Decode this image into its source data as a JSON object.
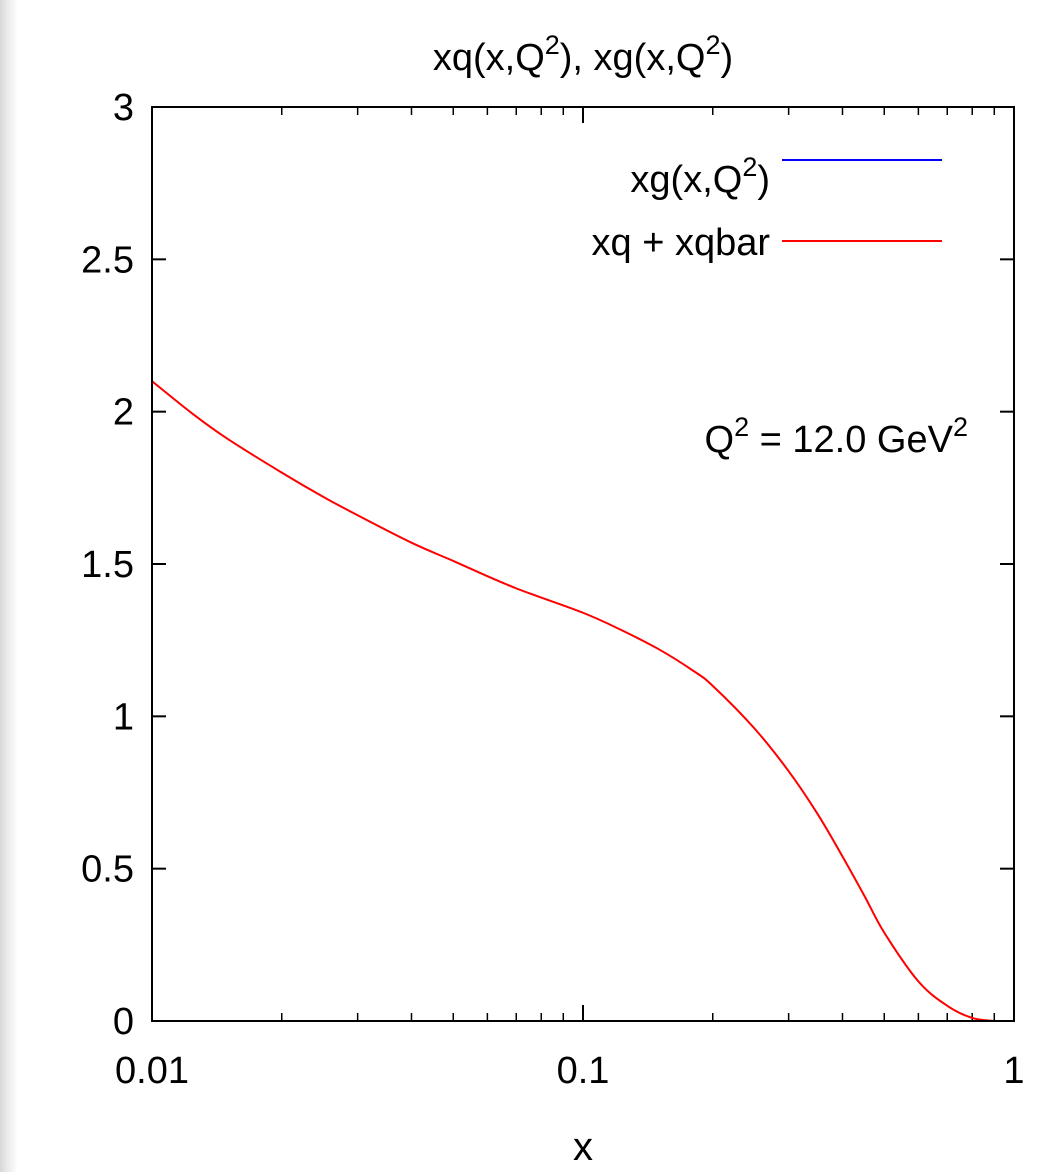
{
  "chart_data": {
    "type": "line",
    "title": "xq(x,Q2), xg(x,Q2)",
    "title_parts": {
      "a": "xq(x,Q",
      "b": "), xg(x,Q",
      "c": ")",
      "sup": "2"
    },
    "xlabel": "x",
    "ylabel": "",
    "x_scale": "log",
    "xlim": [
      0.01,
      1
    ],
    "ylim": [
      0,
      3
    ],
    "x_ticks": [
      0.01,
      0.1,
      1
    ],
    "x_tick_labels": [
      "0.01",
      "0.1",
      "1"
    ],
    "y_ticks": [
      0,
      0.5,
      1,
      1.5,
      2,
      2.5,
      3
    ],
    "y_tick_labels": [
      "0",
      "0.5",
      "1",
      "1.5",
      "2",
      "2.5",
      "3"
    ],
    "grid": false,
    "legend_position": "top-right",
    "legend": [
      {
        "label_base": "xg(x,Q",
        "label_sup": "2",
        "label_tail": ")",
        "color": "#0000ff"
      },
      {
        "label_base": "xq + xqbar",
        "label_sup": "",
        "label_tail": "",
        "color": "#ff0000"
      }
    ],
    "annotation": {
      "base": "Q",
      "sup1": "2",
      "mid": " = 12.0 GeV",
      "sup2": "2"
    },
    "series": [
      {
        "name": "xq + xqbar",
        "color": "#ff0000",
        "x": [
          0.01,
          0.0125,
          0.015,
          0.02,
          0.025,
          0.03,
          0.04,
          0.05,
          0.06,
          0.07,
          0.08,
          0.1,
          0.12,
          0.15,
          0.18,
          0.2,
          0.25,
          0.3,
          0.35,
          0.4,
          0.45,
          0.5,
          0.6,
          0.7,
          0.8,
          0.9
        ],
        "y": [
          2.1,
          1.99,
          1.91,
          1.8,
          1.72,
          1.66,
          1.57,
          1.51,
          1.46,
          1.42,
          1.39,
          1.34,
          1.29,
          1.22,
          1.15,
          1.1,
          0.96,
          0.82,
          0.68,
          0.54,
          0.41,
          0.29,
          0.13,
          0.05,
          0.01,
          0.0
        ]
      },
      {
        "name": "xg(x,Q2)",
        "color": "#0000ff",
        "x": [],
        "y": []
      }
    ]
  }
}
